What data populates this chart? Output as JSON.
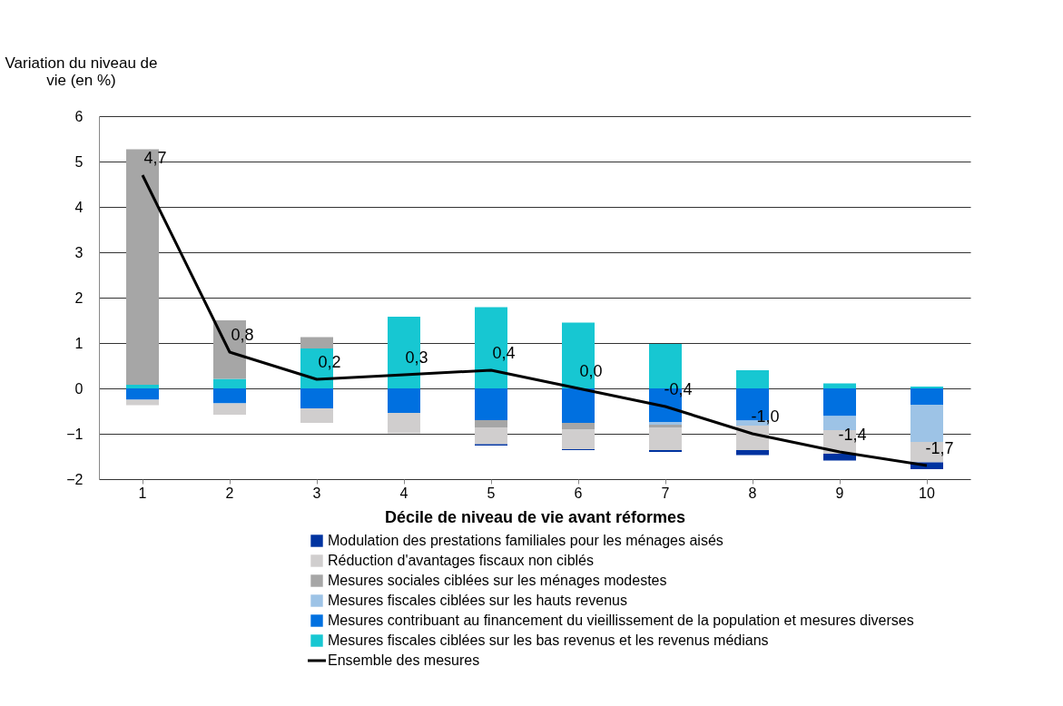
{
  "chart_data": {
    "type": "bar",
    "stacked": true,
    "ylabel": "Variation du niveau de vie (en %)",
    "xlabel": "Décile de niveau de vie avant réformes",
    "categories": [
      "1",
      "2",
      "3",
      "4",
      "5",
      "6",
      "7",
      "8",
      "9",
      "10"
    ],
    "ylim": [
      -2,
      6
    ],
    "yticks": [
      -2,
      -1,
      0,
      1,
      2,
      3,
      4,
      5,
      6
    ],
    "grid": "y",
    "legend": "bottom",
    "series": [
      {
        "name": "Mesures fiscales ciblées sur les bas revenus et les revenus médians",
        "color": "#17c7d2",
        "values": [
          0.08,
          0.21,
          0.88,
          1.58,
          1.79,
          1.45,
          0.98,
          0.4,
          0.11,
          0.04
        ]
      },
      {
        "name": "Mesures contribuant au financement du vieillissement de la population et mesures diverses",
        "color": "#0070e0",
        "values": [
          -0.25,
          -0.33,
          -0.44,
          -0.54,
          -0.7,
          -0.76,
          -0.74,
          -0.71,
          -0.61,
          -0.36
        ]
      },
      {
        "name": "Mesures fiscales ciblées sur les hauts revenus",
        "color": "#9dc3e6",
        "values": [
          0,
          0,
          0,
          0,
          0,
          0,
          -0.06,
          -0.11,
          -0.31,
          -0.82
        ]
      },
      {
        "name": "Mesures sociales ciblées sur les ménages modestes",
        "color": "#a6a6a6",
        "values": [
          5.19,
          1.29,
          0.25,
          0,
          -0.17,
          -0.15,
          -0.06,
          0,
          0,
          0
        ]
      },
      {
        "name": "Réduction d'avantages fiscaux non ciblés",
        "color": "#d0cece",
        "values": [
          -0.12,
          -0.25,
          -0.32,
          -0.45,
          -0.36,
          -0.43,
          -0.5,
          -0.54,
          -0.52,
          -0.45
        ]
      },
      {
        "name": "Modulation des prestations familiales pour les ménages aisés",
        "color": "#0033a0",
        "values": [
          0,
          0,
          0,
          0,
          -0.03,
          -0.02,
          -0.04,
          -0.11,
          -0.15,
          -0.15
        ]
      },
      {
        "name": "Ensemble des mesures",
        "type": "line",
        "color": "#000000",
        "values": [
          4.7,
          0.8,
          0.2,
          0.3,
          0.4,
          0.0,
          -0.4,
          -1.0,
          -1.4,
          -1.7
        ],
        "value_labels": [
          "4,7",
          "0,8",
          "0,2",
          "0,3",
          "0,4",
          "0,0",
          "-0,4",
          "-1,0",
          "-1,4",
          "-1,7"
        ]
      }
    ]
  }
}
